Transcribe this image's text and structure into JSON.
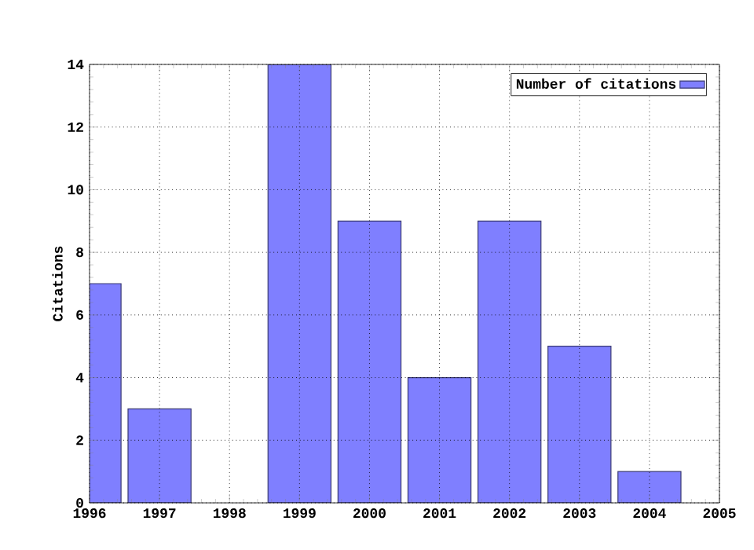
{
  "chart_data": {
    "type": "bar",
    "ylabel": "Citations",
    "x": [
      1996,
      1997,
      1999,
      2000,
      2001,
      2002,
      2003,
      2004
    ],
    "series": [
      {
        "name": "Number of citations",
        "color": "#7f7fff",
        "values": [
          7,
          3,
          14,
          9,
          4,
          9,
          5,
          1
        ]
      }
    ],
    "xlim": [
      1996,
      2005
    ],
    "xticks": [
      1996,
      1997,
      1998,
      1999,
      2000,
      2001,
      2002,
      2003,
      2004,
      2005
    ],
    "ylim": [
      0,
      14
    ],
    "yticks": [
      0,
      2,
      4,
      6,
      8,
      10,
      12,
      14
    ],
    "grid": true,
    "legend": "top right"
  }
}
